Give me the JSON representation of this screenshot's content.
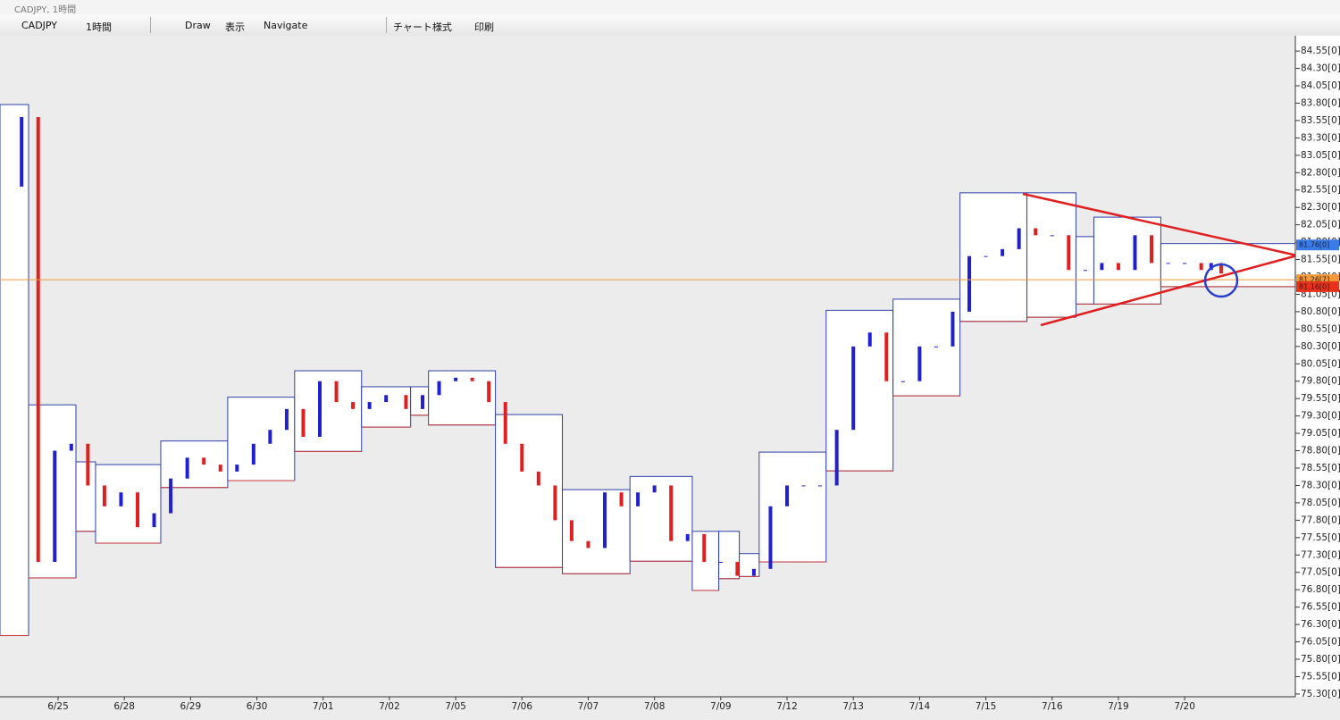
{
  "window": {
    "title": "CADJPY, 1時間"
  },
  "toolbar": {
    "symbol": "CADJPY",
    "timeframe": "1時間",
    "draw": "Draw",
    "view": "表示",
    "navigate": "Navigate",
    "chart_style": "チャート様式",
    "print": "印刷"
  },
  "chart_data": {
    "type": "candlestick",
    "xlim": [
      -0.876,
      18.67
    ],
    "ylim": [
      75.26,
      84.77
    ],
    "xticks": [
      {
        "value": 0,
        "label": "6/25"
      },
      {
        "value": 1,
        "label": "6/28"
      },
      {
        "value": 2,
        "label": "6/29"
      },
      {
        "value": 3,
        "label": "6/30"
      },
      {
        "value": 4,
        "label": "7/01"
      },
      {
        "value": 5,
        "label": "7/02"
      },
      {
        "value": 6,
        "label": "7/05"
      },
      {
        "value": 7,
        "label": "7/06"
      },
      {
        "value": 8,
        "label": "7/07"
      },
      {
        "value": 9,
        "label": "7/08"
      },
      {
        "value": 10,
        "label": "7/09"
      },
      {
        "value": 11,
        "label": "7/12"
      },
      {
        "value": 12,
        "label": "7/13"
      },
      {
        "value": 13,
        "label": "7/14"
      },
      {
        "value": 14,
        "label": "7/15"
      },
      {
        "value": 15,
        "label": "7/16"
      },
      {
        "value": 16,
        "label": "7/19"
      },
      {
        "value": 17,
        "label": "7/20"
      }
    ],
    "yticks": [
      {
        "value": 75.3,
        "label": "75.30[0]"
      },
      {
        "value": 75.55,
        "label": "75.55[0]"
      },
      {
        "value": 75.8,
        "label": "75.80[0]"
      },
      {
        "value": 76.05,
        "label": "76.05[0]"
      },
      {
        "value": 76.3,
        "label": "76.30[0]"
      },
      {
        "value": 76.55,
        "label": "76.55[0]"
      },
      {
        "value": 76.8,
        "label": "76.80[0]"
      },
      {
        "value": 77.05,
        "label": "77.05[0]"
      },
      {
        "value": 77.3,
        "label": "77.30[0]"
      },
      {
        "value": 77.55,
        "label": "77.55[0]"
      },
      {
        "value": 77.8,
        "label": "77.80[0]"
      },
      {
        "value": 78.05,
        "label": "78.05[0]"
      },
      {
        "value": 78.3,
        "label": "78.30[0]"
      },
      {
        "value": 78.55,
        "label": "78.55[0]"
      },
      {
        "value": 78.8,
        "label": "78.80[0]"
      },
      {
        "value": 79.05,
        "label": "79.05[0]"
      },
      {
        "value": 79.3,
        "label": "79.30[0]"
      },
      {
        "value": 79.55,
        "label": "79.55[0]"
      },
      {
        "value": 79.8,
        "label": "79.80[0]"
      },
      {
        "value": 80.05,
        "label": "80.05[0]"
      },
      {
        "value": 80.3,
        "label": "80.30[0]"
      },
      {
        "value": 80.55,
        "label": "80.55[0]"
      },
      {
        "value": 80.8,
        "label": "80.80[0]"
      },
      {
        "value": 81.05,
        "label": "81.05[0]"
      },
      {
        "value": 81.3,
        "label": "81.30[0]"
      },
      {
        "value": 81.55,
        "label": "81.55[0]"
      },
      {
        "value": 81.8,
        "label": "81.80[0]"
      },
      {
        "value": 82.05,
        "label": "82.05[0]"
      },
      {
        "value": 82.3,
        "label": "82.30[0]"
      },
      {
        "value": 82.55,
        "label": "82.55[0]"
      },
      {
        "value": 82.8,
        "label": "82.80[0]"
      },
      {
        "value": 83.05,
        "label": "83.05[0]"
      },
      {
        "value": 83.3,
        "label": "83.30[0]"
      },
      {
        "value": 83.55,
        "label": "83.55[0]"
      },
      {
        "value": 83.8,
        "label": "83.80[0]"
      },
      {
        "value": 84.05,
        "label": "84.05[0]"
      },
      {
        "value": 84.3,
        "label": "84.30[0]"
      },
      {
        "value": 84.55,
        "label": "84.55[0]"
      }
    ],
    "day_ranges": {
      "start": [
        -0.876,
        -0.445,
        0.27,
        0.566,
        1.55,
        2.56,
        3.57,
        4.58,
        5.32,
        5.59,
        6.6,
        7.61,
        8.63,
        9.57,
        9.97,
        10.28,
        10.58,
        11.59,
        12.6,
        13.61,
        14.62,
        15.36,
        15.63,
        16.64
      ],
      "end": [
        -0.445,
        0.27,
        0.566,
        1.55,
        2.56,
        3.57,
        4.58,
        5.32,
        5.59,
        6.6,
        7.61,
        8.63,
        9.57,
        9.97,
        10.28,
        10.58,
        11.59,
        12.6,
        13.61,
        14.62,
        15.36,
        15.63,
        16.64,
        18.67
      ],
      "high": [
        83.78,
        79.46,
        78.64,
        78.6,
        78.94,
        79.57,
        79.95,
        79.72,
        79.72,
        79.95,
        79.32,
        78.24,
        78.43,
        77.64,
        77.64,
        77.32,
        78.78,
        80.82,
        80.98,
        82.51,
        82.51,
        81.88,
        82.16,
        81.78
      ],
      "low": [
        76.14,
        76.97,
        77.64,
        77.47,
        78.27,
        78.37,
        78.79,
        79.14,
        79.31,
        79.17,
        77.12,
        77.03,
        77.21,
        76.79,
        76.96,
        76.99,
        77.2,
        78.51,
        79.59,
        80.66,
        80.72,
        80.91,
        80.91,
        81.16
      ]
    },
    "x": [
      -0.8,
      -0.55,
      -0.3,
      -0.05,
      0.2,
      0.45,
      0.7,
      0.95,
      1.2,
      1.45,
      1.7,
      1.95,
      2.2,
      2.45,
      2.7,
      2.95,
      3.2,
      3.45,
      3.7,
      3.95,
      4.2,
      4.45,
      4.7,
      4.95,
      5.25,
      5.5,
      5.75,
      6.0,
      6.25,
      6.5,
      6.75,
      7.0,
      7.25,
      7.5,
      7.75,
      8.0,
      8.25,
      8.5,
      8.75,
      9.0,
      9.25,
      9.5,
      9.75,
      10.0,
      10.25,
      10.5,
      10.75,
      11.0,
      11.25,
      11.5,
      11.75,
      12.0,
      12.25,
      12.5,
      12.75,
      13.0,
      13.25,
      13.5,
      13.75,
      14.0,
      14.25,
      14.5,
      14.75,
      15.0,
      15.25,
      15.5,
      15.75,
      16.0,
      16.25,
      16.5,
      16.75,
      17.0,
      17.25,
      17.4,
      17.55
    ],
    "closes": [
      82.6,
      83.6,
      77.2,
      78.8,
      78.9,
      78.3,
      78.0,
      78.2,
      77.7,
      77.9,
      78.4,
      78.7,
      78.6,
      78.5,
      78.6,
      78.9,
      79.1,
      79.4,
      79.0,
      79.8,
      79.5,
      79.4,
      79.5,
      79.6,
      79.4,
      79.6,
      79.8,
      79.85,
      79.8,
      79.5,
      78.9,
      78.5,
      78.3,
      77.8,
      77.5,
      77.4,
      78.2,
      78.0,
      78.2,
      78.3,
      77.5,
      77.6,
      77.2,
      77.2,
      77.0,
      77.1,
      78.0,
      78.3,
      78.3,
      78.3,
      79.1,
      80.3,
      80.5,
      79.8,
      79.8,
      80.3,
      80.3,
      80.8,
      81.6,
      81.6,
      81.7,
      82.0,
      81.9,
      81.9,
      81.4,
      81.4,
      81.5,
      81.4,
      81.9,
      81.5,
      81.5,
      81.5,
      81.4,
      81.5,
      81.35
    ],
    "price_lines": [
      {
        "value": 81.76,
        "label": "81.76[0]",
        "color": "#3a7be8"
      },
      {
        "value": 81.26,
        "label": "81.26[7]",
        "color": "#f39a3a"
      },
      {
        "value": 81.16,
        "label": "81.16[0]",
        "color": "#e8321c"
      }
    ]
  }
}
